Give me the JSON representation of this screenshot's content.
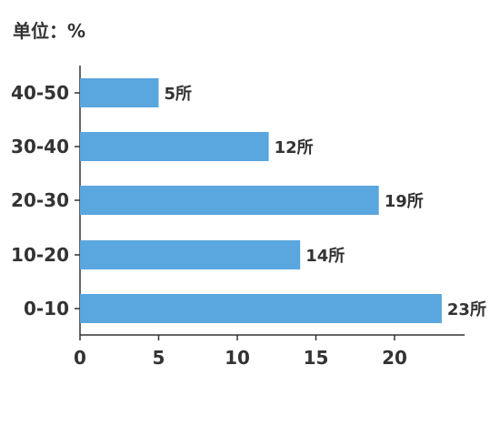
{
  "chart_data": {
    "type": "bar",
    "orientation": "horizontal",
    "unit_label": "单位：%",
    "categories": [
      "40-50",
      "30-40",
      "20-30",
      "10-20",
      "0-10"
    ],
    "values": [
      5,
      12,
      19,
      14,
      23
    ],
    "value_labels": [
      "5所",
      "12所",
      "19所",
      "14所",
      "23所"
    ],
    "x_ticks": [
      "0",
      "5",
      "10",
      "15",
      "20"
    ],
    "xlim": [
      0,
      24
    ],
    "grid": false,
    "bar_color": "#5aa6de",
    "axis_color": "#333333",
    "text_color": "#333333"
  }
}
